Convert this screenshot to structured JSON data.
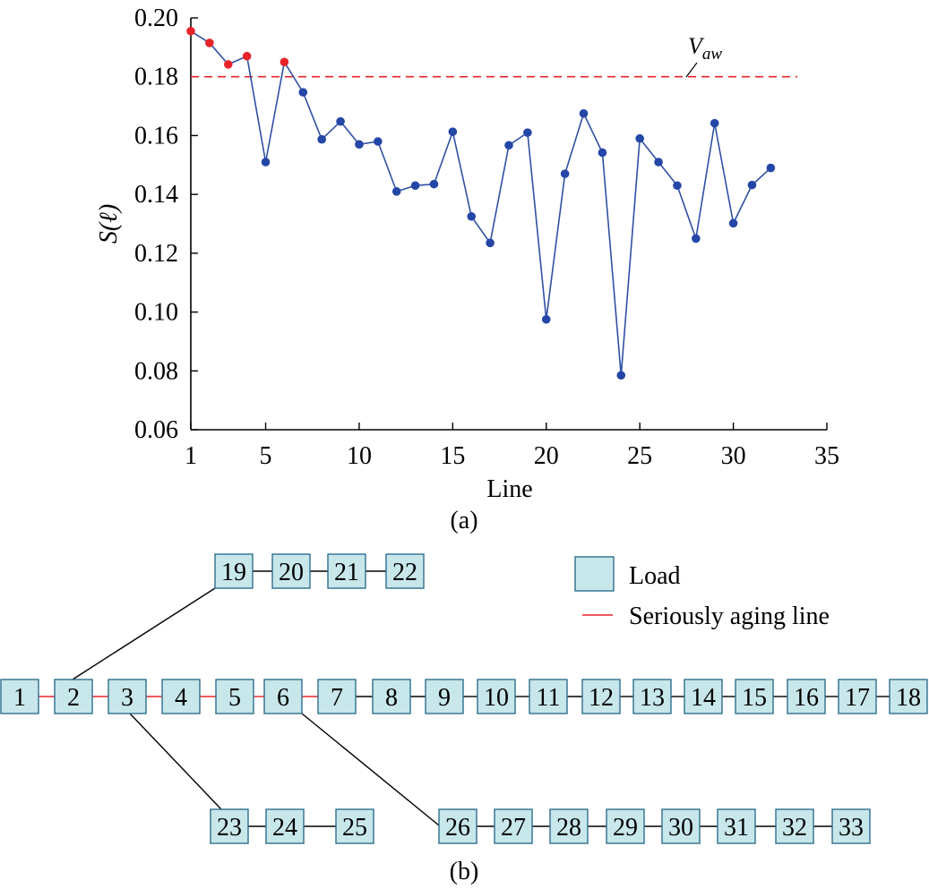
{
  "chart_data": {
    "type": "line",
    "panel_label": "(a)",
    "xlabel": "Line",
    "ylabel": "S(ℓ)",
    "xlim": [
      1,
      35
    ],
    "ylim": [
      0.06,
      0.2
    ],
    "xticks": [
      "1",
      "5",
      "10",
      "15",
      "20",
      "25",
      "30",
      "35"
    ],
    "yticks": [
      "0.06",
      "0.08",
      "0.10",
      "0.12",
      "0.14",
      "0.16",
      "0.18",
      "0.20"
    ],
    "threshold": {
      "label": "V",
      "label_sub": "aw",
      "value": 0.18,
      "color": "#e8232a"
    },
    "series": [
      {
        "x": [
          1,
          2,
          3,
          4,
          5,
          6,
          7,
          8,
          9,
          10,
          11,
          12,
          13,
          14,
          15,
          16,
          17,
          18,
          19,
          20,
          21,
          22,
          23,
          24,
          25,
          26,
          27,
          28,
          29,
          30,
          31,
          32
        ],
        "values": [
          0.1955,
          0.1915,
          0.1842,
          0.187,
          0.151,
          0.185,
          0.1747,
          0.1587,
          0.1648,
          0.157,
          0.158,
          0.141,
          0.143,
          0.1435,
          0.1613,
          0.1325,
          0.1235,
          0.1567,
          0.161,
          0.0975,
          0.147,
          0.1675,
          0.1542,
          0.0785,
          0.159,
          0.151,
          0.143,
          0.125,
          0.1642,
          0.1302,
          0.1432,
          0.149
        ],
        "line_color": "#2f50a3",
        "marker_color": "#2446a6",
        "highlight_color": "#e8232a",
        "highlight_x": [
          1,
          2,
          3,
          4,
          6
        ]
      }
    ]
  },
  "diagram": {
    "panel_label": "(b)",
    "legend": {
      "load_label": "Load",
      "aging_label": "Seriously aging line",
      "load_fill": "#c8e7ea",
      "load_stroke": "#2e6f8c",
      "aging_color": "#e8232a"
    },
    "nodes": [
      "1",
      "2",
      "3",
      "4",
      "5",
      "6",
      "7",
      "8",
      "9",
      "10",
      "11",
      "12",
      "13",
      "14",
      "15",
      "16",
      "17",
      "18",
      "19",
      "20",
      "21",
      "22",
      "23",
      "24",
      "25",
      "26",
      "27",
      "28",
      "29",
      "30",
      "31",
      "32",
      "33"
    ]
  }
}
